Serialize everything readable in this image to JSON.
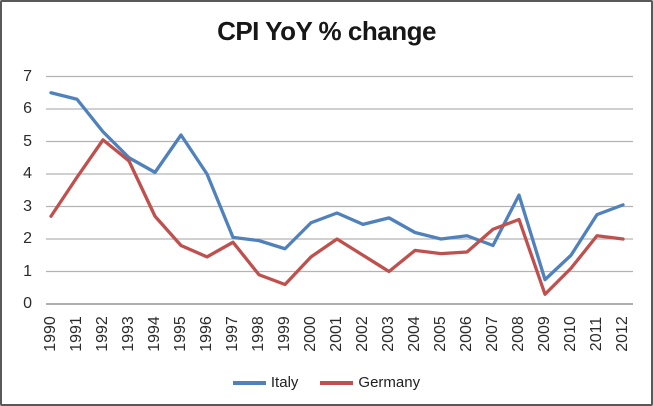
{
  "window": {
    "background": "#ffffff",
    "border_color": "#595959"
  },
  "chart_data": {
    "type": "line",
    "title": "CPI YoY % change",
    "xlabel": "",
    "ylabel": "",
    "categories": [
      "1990",
      "1991",
      "1992",
      "1993",
      "1994",
      "1995",
      "1996",
      "1997",
      "1998",
      "1999",
      "2000",
      "2001",
      "2002",
      "2003",
      "2004",
      "2005",
      "2006",
      "2007",
      "2008",
      "2009",
      "2010",
      "2011",
      "2012"
    ],
    "series": [
      {
        "name": "Italy",
        "color": "#4F81BD",
        "values": [
          6.5,
          6.3,
          5.3,
          4.5,
          4.05,
          5.2,
          4.0,
          2.05,
          1.95,
          1.7,
          2.5,
          2.8,
          2.45,
          2.65,
          2.2,
          2.0,
          2.1,
          1.8,
          3.35,
          0.75,
          1.5,
          2.75,
          3.05
        ]
      },
      {
        "name": "Germany",
        "color": "#C0504D",
        "values": [
          2.7,
          3.9,
          5.05,
          4.4,
          2.7,
          1.8,
          1.45,
          1.9,
          0.9,
          0.6,
          1.45,
          2.0,
          1.5,
          1.0,
          1.65,
          1.55,
          1.6,
          2.3,
          2.6,
          0.3,
          1.1,
          2.1,
          2.0
        ]
      }
    ],
    "ylim": [
      0,
      7
    ],
    "yticks": [
      0,
      1,
      2,
      3,
      4,
      5,
      6,
      7
    ],
    "grid": true,
    "gridline_color": "#b3b3b3",
    "axis_line_color": "#7f7f7f",
    "tick_label_color": "#2b2b2b",
    "legend_position": "bottom"
  }
}
